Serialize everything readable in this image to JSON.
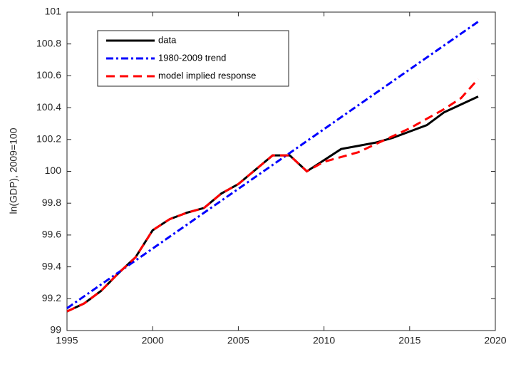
{
  "chart_data": {
    "type": "line",
    "ylabel": "ln(GDP), 2009=100",
    "x": [
      1995,
      1996,
      1997,
      1998,
      1999,
      2000,
      2001,
      2002,
      2003,
      2004,
      2005,
      2006,
      2007,
      2008,
      2009,
      2010,
      2011,
      2012,
      2013,
      2014,
      2015,
      2016,
      2017,
      2018,
      2019
    ],
    "series": [
      {
        "name": "data",
        "color": "#000000",
        "style": "solid",
        "values": [
          99.12,
          99.17,
          99.25,
          99.36,
          99.46,
          99.63,
          99.7,
          99.74,
          99.77,
          99.86,
          99.92,
          100.01,
          100.1,
          100.1,
          100.0,
          100.07,
          100.14,
          100.16,
          100.18,
          100.21,
          100.25,
          100.29,
          100.37,
          100.42,
          100.47
        ]
      },
      {
        "name": "1980-2009 trend",
        "color": "#0000ff",
        "style": "dashdot",
        "values": [
          99.14,
          99.215,
          99.29,
          99.365,
          99.44,
          99.515,
          99.59,
          99.665,
          99.74,
          99.815,
          99.89,
          99.965,
          100.04,
          100.115,
          100.19,
          100.265,
          100.34,
          100.415,
          100.49,
          100.565,
          100.64,
          100.715,
          100.79,
          100.865,
          100.94
        ]
      },
      {
        "name": "model implied response",
        "color": "#ff0000",
        "style": "dashed",
        "values": [
          99.12,
          99.17,
          99.25,
          99.36,
          99.46,
          99.63,
          99.7,
          99.74,
          99.77,
          99.86,
          99.92,
          100.01,
          100.1,
          100.1,
          100.0,
          100.06,
          100.09,
          100.12,
          100.17,
          100.22,
          100.27,
          100.33,
          100.39,
          100.46,
          100.58
        ]
      }
    ],
    "xlim": [
      1995,
      2020
    ],
    "xticks": [
      1995,
      2000,
      2005,
      2010,
      2015,
      2020
    ],
    "ylim": [
      99,
      101
    ],
    "yticks": [
      99,
      99.2,
      99.4,
      99.6,
      99.8,
      100,
      100.2,
      100.4,
      100.6,
      100.8,
      101
    ],
    "grid": false,
    "legend": "upper left"
  }
}
